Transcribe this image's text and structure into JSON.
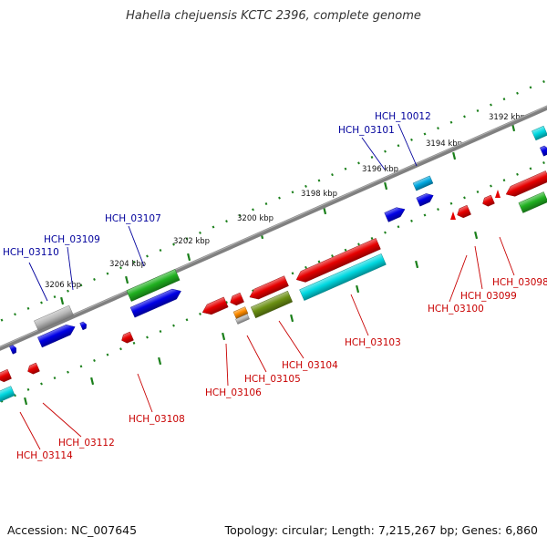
{
  "title": "Hahella chejuensis KCTC 2396, complete genome",
  "footer": {
    "accession": "Accession: NC_007645",
    "topology": "Topology: circular; Length: 7,215,267 bp; Genes: 6,860"
  },
  "colors": {
    "backbone": "#808080",
    "tick": "#1a7f1a",
    "forward_label": "#00009c",
    "reverse_label": "#c80000",
    "red": "#e60000",
    "blue": "#0000e6",
    "cyan": "#00d8e0",
    "green": "#20b020",
    "olive": "#6a8f12",
    "gray": "#b8b8b8",
    "orange": "#ff8c00",
    "sky": "#00a8e0"
  },
  "ticks": [
    "3192 kbp",
    "3194 kbp",
    "3196 kbp",
    "3198 kbp",
    "3200 kbp",
    "3202 kbp",
    "3204 kbp",
    "3206 kbp"
  ],
  "forward_labels": [
    "HCH_10012",
    "HCH_03101",
    "HCH_03107",
    "HCH_03109",
    "HCH_03110"
  ],
  "reverse_labels": [
    "HCH_03098",
    "HCH_03099",
    "HCH_03100",
    "HCH_03103",
    "HCH_03104",
    "HCH_03105",
    "HCH_03106",
    "HCH_03108",
    "HCH_03112",
    "HCH_03114"
  ]
}
